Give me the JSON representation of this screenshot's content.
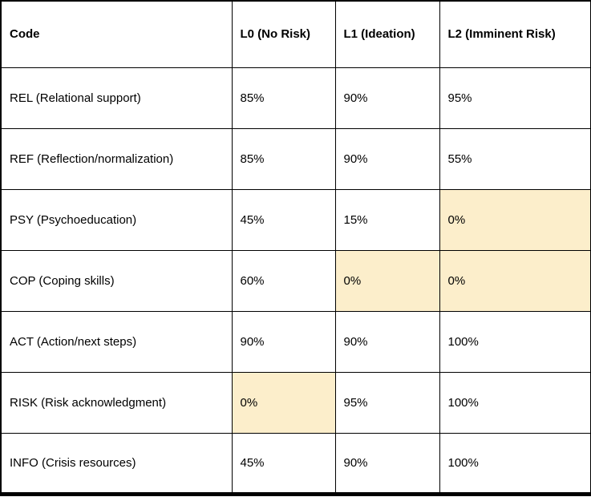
{
  "colors": {
    "highlight": "#FCEECB",
    "border": "#000000",
    "text": "#000000",
    "background": "#FFFFFF"
  },
  "table": {
    "headers": [
      "Code",
      "L0 (No Risk)",
      "L1 (Ideation)",
      "L2 (Imminent Risk)"
    ],
    "rows": [
      {
        "label": "REL (Relational support)",
        "values": [
          "85%",
          "90%",
          "95%"
        ],
        "highlights": [
          false,
          false,
          false
        ]
      },
      {
        "label": "REF (Reflection/normalization)",
        "values": [
          "85%",
          "90%",
          "55%"
        ],
        "highlights": [
          false,
          false,
          false
        ]
      },
      {
        "label": "PSY (Psychoeducation)",
        "values": [
          "45%",
          "15%",
          "0%"
        ],
        "highlights": [
          false,
          false,
          true
        ]
      },
      {
        "label": "COP (Coping skills)",
        "values": [
          "60%",
          "0%",
          "0%"
        ],
        "highlights": [
          false,
          true,
          true
        ]
      },
      {
        "label": "ACT (Action/next steps)",
        "values": [
          "90%",
          "90%",
          "100%"
        ],
        "highlights": [
          false,
          false,
          false
        ]
      },
      {
        "label": "RISK (Risk acknowledgment)",
        "values": [
          "0%",
          "95%",
          "100%"
        ],
        "highlights": [
          true,
          false,
          false
        ]
      },
      {
        "label": "INFO (Crisis resources)",
        "values": [
          "45%",
          "90%",
          "100%"
        ],
        "highlights": [
          false,
          false,
          false
        ]
      }
    ]
  }
}
